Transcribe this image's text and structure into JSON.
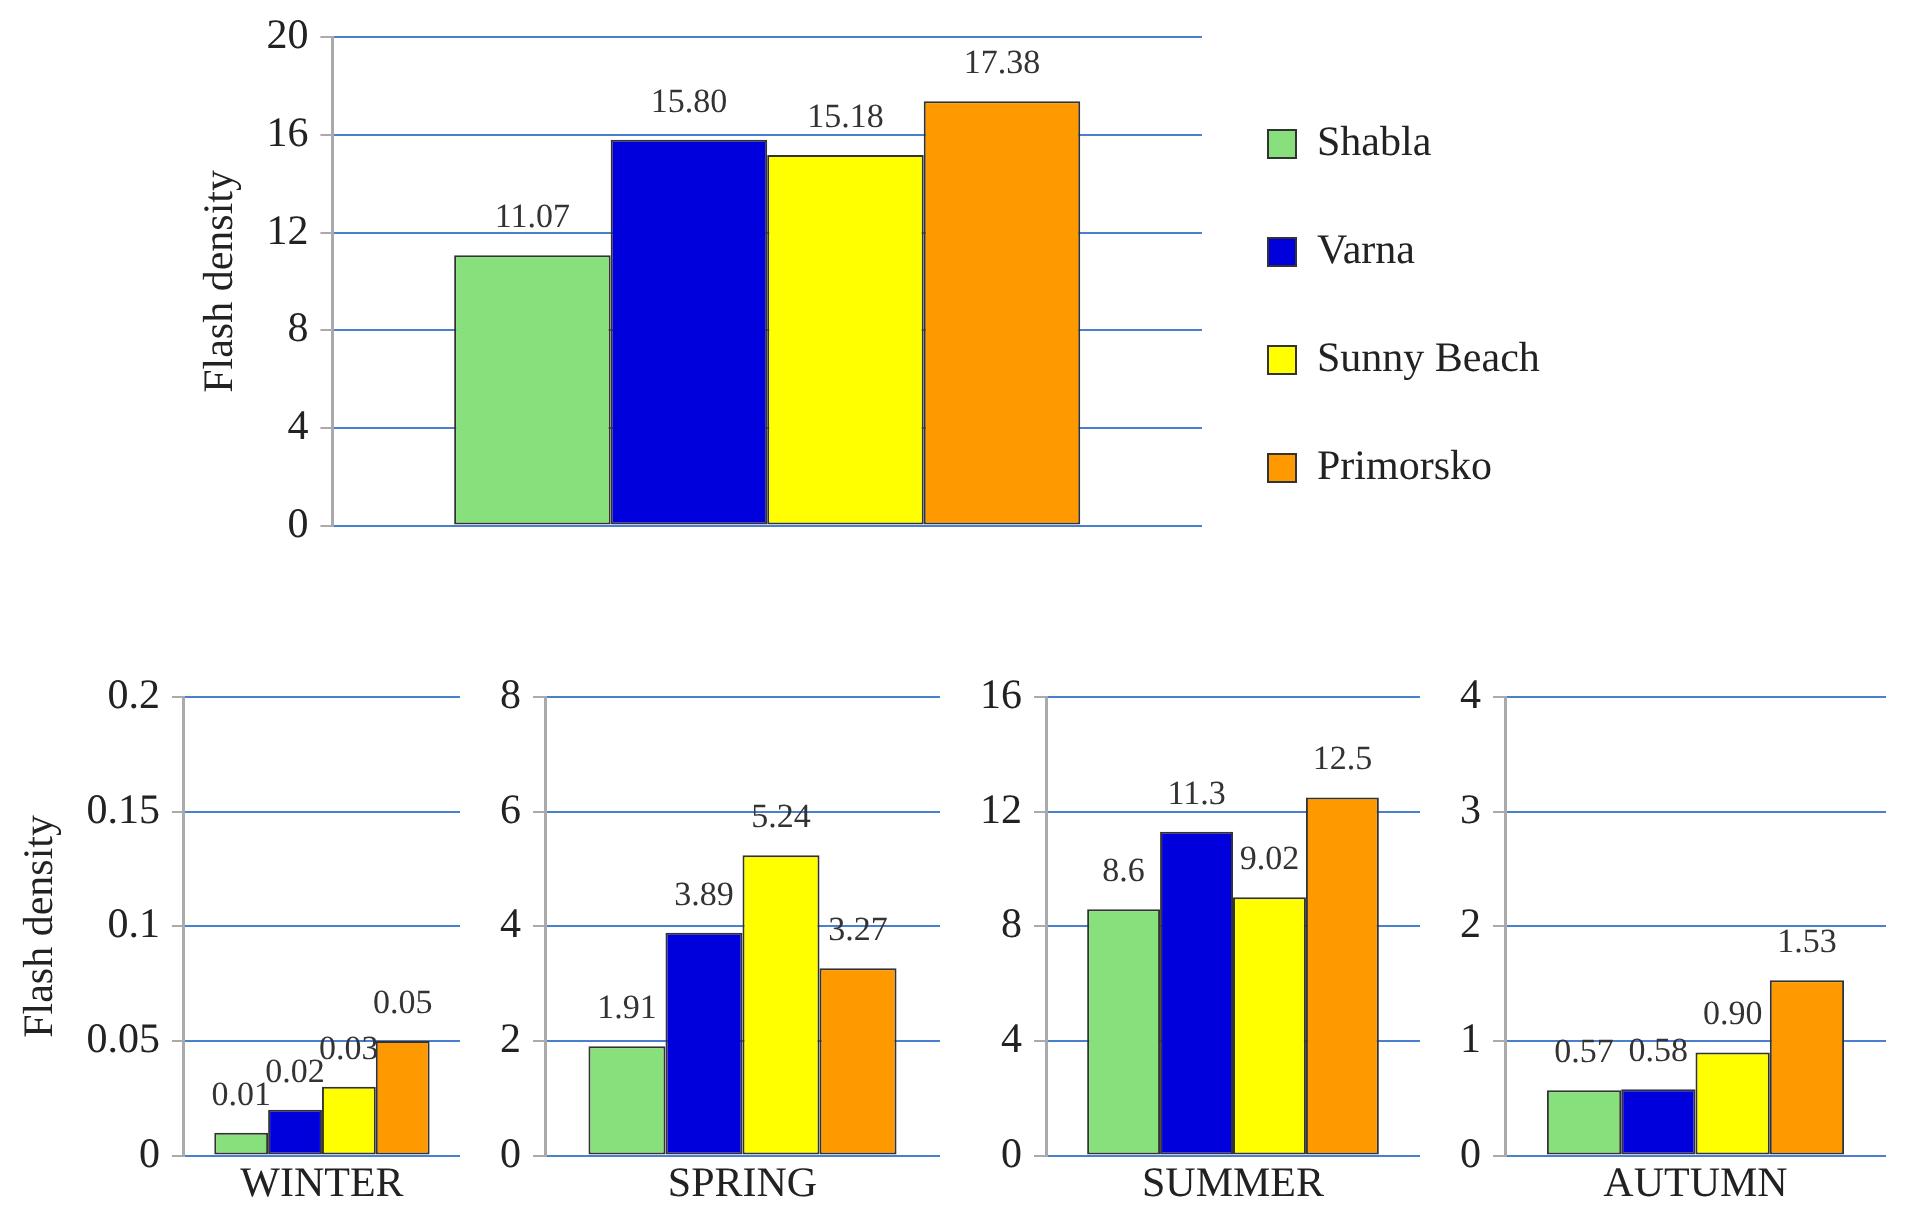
{
  "chart_data": [
    {
      "type": "bar",
      "ylabel": "Flash density",
      "categories": [
        null
      ],
      "ylim": [
        0,
        20
      ],
      "yticks": [
        0,
        4,
        8,
        12,
        16,
        20
      ],
      "grid": "y",
      "legend": "right",
      "series": [
        {
          "name": "Shabla",
          "color": "#88e07c",
          "values": [
            11.07
          ],
          "value_labels": [
            "11.07"
          ]
        },
        {
          "name": "Varna",
          "color": "#0000dd",
          "values": [
            15.8
          ],
          "value_labels": [
            "15.80"
          ]
        },
        {
          "name": "Sunny Beach",
          "color": "#ffff00",
          "values": [
            15.18
          ],
          "value_labels": [
            "15.18"
          ]
        },
        {
          "name": "Primorsko",
          "color": "#ff9900",
          "values": [
            17.38
          ],
          "value_labels": [
            "17.38"
          ]
        }
      ]
    },
    {
      "type": "bar",
      "ylabel": "Flash density",
      "categories": [
        "WINTER"
      ],
      "ylim": [
        0,
        0.2
      ],
      "yticks": [
        0,
        0.05,
        0.1,
        0.15,
        0.2
      ],
      "grid": "y",
      "series": [
        {
          "color": "#88e07c",
          "values": [
            0.01
          ],
          "value_labels": [
            "0.01"
          ]
        },
        {
          "color": "#0000dd",
          "values": [
            0.02
          ],
          "value_labels": [
            "0.02"
          ]
        },
        {
          "color": "#ffff00",
          "values": [
            0.03
          ],
          "value_labels": [
            "0.03"
          ]
        },
        {
          "color": "#ff9900",
          "values": [
            0.05
          ],
          "value_labels": [
            "0.05"
          ]
        }
      ]
    },
    {
      "type": "bar",
      "categories": [
        "SPRING"
      ],
      "ylim": [
        0,
        8
      ],
      "yticks": [
        0,
        2,
        4,
        6,
        8
      ],
      "grid": "y",
      "series": [
        {
          "color": "#88e07c",
          "values": [
            1.91
          ],
          "value_labels": [
            "1.91"
          ]
        },
        {
          "color": "#0000dd",
          "values": [
            3.89
          ],
          "value_labels": [
            "3.89"
          ]
        },
        {
          "color": "#ffff00",
          "values": [
            5.24
          ],
          "value_labels": [
            "5.24"
          ]
        },
        {
          "color": "#ff9900",
          "values": [
            3.27
          ],
          "value_labels": [
            "3.27"
          ]
        }
      ]
    },
    {
      "type": "bar",
      "categories": [
        "SUMMER"
      ],
      "ylim": [
        0,
        16
      ],
      "yticks": [
        0,
        4,
        8,
        12,
        16
      ],
      "grid": "y",
      "series": [
        {
          "color": "#88e07c",
          "values": [
            8.6
          ],
          "value_labels": [
            "8.6"
          ]
        },
        {
          "color": "#0000dd",
          "values": [
            11.3
          ],
          "value_labels": [
            "11.3"
          ]
        },
        {
          "color": "#ffff00",
          "values": [
            9.02
          ],
          "value_labels": [
            "9.02"
          ]
        },
        {
          "color": "#ff9900",
          "values": [
            12.5
          ],
          "value_labels": [
            "12.5"
          ]
        }
      ]
    },
    {
      "type": "bar",
      "categories": [
        "AUTUMN"
      ],
      "ylim": [
        0,
        4
      ],
      "yticks": [
        0,
        1,
        2,
        3,
        4
      ],
      "grid": "y",
      "series": [
        {
          "color": "#88e07c",
          "values": [
            0.57
          ],
          "value_labels": [
            "0.57"
          ]
        },
        {
          "color": "#0000dd",
          "values": [
            0.58
          ],
          "value_labels": [
            "0.58"
          ]
        },
        {
          "color": "#ffff00",
          "values": [
            0.9
          ],
          "value_labels": [
            "0.90"
          ]
        },
        {
          "color": "#ff9900",
          "values": [
            1.53
          ],
          "value_labels": [
            "1.53"
          ]
        }
      ]
    }
  ]
}
